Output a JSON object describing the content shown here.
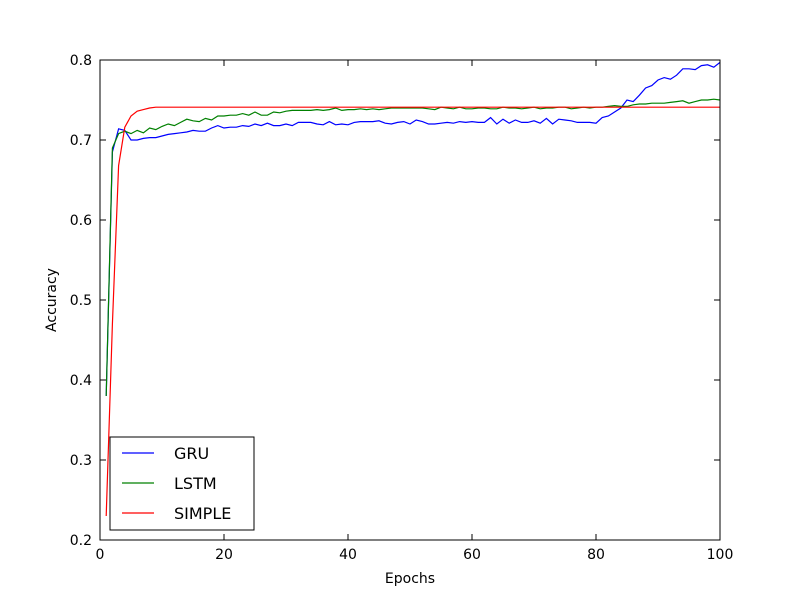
{
  "chart_data": {
    "type": "line",
    "title": "",
    "xlabel": "Epochs",
    "ylabel": "Accuracy",
    "xlim": [
      0,
      100
    ],
    "ylim": [
      0.2,
      0.8
    ],
    "xticks": [
      0,
      20,
      40,
      60,
      80,
      100
    ],
    "yticks": [
      0.2,
      0.3,
      0.4,
      0.5,
      0.6,
      0.7,
      0.8
    ],
    "grid": false,
    "legend_position": "lower-left",
    "x": [
      1,
      2,
      3,
      4,
      5,
      6,
      7,
      8,
      9,
      10,
      11,
      12,
      13,
      14,
      15,
      16,
      17,
      18,
      19,
      20,
      21,
      22,
      23,
      24,
      25,
      26,
      27,
      28,
      29,
      30,
      31,
      32,
      33,
      34,
      35,
      36,
      37,
      38,
      39,
      40,
      41,
      42,
      43,
      44,
      45,
      46,
      47,
      48,
      49,
      50,
      51,
      52,
      53,
      54,
      55,
      56,
      57,
      58,
      59,
      60,
      61,
      62,
      63,
      64,
      65,
      66,
      67,
      68,
      69,
      70,
      71,
      72,
      73,
      74,
      75,
      76,
      77,
      78,
      79,
      80,
      81,
      82,
      83,
      84,
      85,
      86,
      87,
      88,
      89,
      90,
      91,
      92,
      93,
      94,
      95,
      96,
      97,
      98,
      99,
      100
    ],
    "series": [
      {
        "name": "GRU",
        "color": "#0000ff",
        "values": [
          0.38,
          0.685,
          0.714,
          0.712,
          0.7,
          0.7,
          0.702,
          0.703,
          0.703,
          0.705,
          0.707,
          0.708,
          0.709,
          0.71,
          0.712,
          0.711,
          0.711,
          0.715,
          0.718,
          0.715,
          0.716,
          0.716,
          0.718,
          0.717,
          0.72,
          0.718,
          0.721,
          0.718,
          0.718,
          0.72,
          0.718,
          0.722,
          0.722,
          0.722,
          0.72,
          0.719,
          0.723,
          0.719,
          0.72,
          0.719,
          0.722,
          0.723,
          0.723,
          0.723,
          0.724,
          0.721,
          0.72,
          0.722,
          0.723,
          0.72,
          0.725,
          0.723,
          0.72,
          0.72,
          0.721,
          0.722,
          0.721,
          0.723,
          0.722,
          0.723,
          0.722,
          0.722,
          0.728,
          0.72,
          0.726,
          0.721,
          0.725,
          0.722,
          0.722,
          0.724,
          0.721,
          0.727,
          0.72,
          0.726,
          0.725,
          0.724,
          0.722,
          0.722,
          0.722,
          0.721,
          0.728,
          0.73,
          0.735,
          0.74,
          0.75,
          0.748,
          0.756,
          0.765,
          0.768,
          0.775,
          0.778,
          0.776,
          0.781,
          0.789,
          0.789,
          0.788,
          0.793,
          0.794,
          0.791,
          0.797
        ]
      },
      {
        "name": "LSTM",
        "color": "#008000",
        "values": [
          0.38,
          0.69,
          0.708,
          0.711,
          0.708,
          0.712,
          0.709,
          0.715,
          0.713,
          0.717,
          0.72,
          0.718,
          0.722,
          0.726,
          0.724,
          0.723,
          0.727,
          0.725,
          0.73,
          0.73,
          0.731,
          0.731,
          0.733,
          0.731,
          0.735,
          0.731,
          0.731,
          0.735,
          0.734,
          0.736,
          0.737,
          0.737,
          0.737,
          0.737,
          0.738,
          0.737,
          0.738,
          0.74,
          0.737,
          0.738,
          0.738,
          0.739,
          0.738,
          0.739,
          0.738,
          0.739,
          0.74,
          0.74,
          0.74,
          0.74,
          0.74,
          0.74,
          0.739,
          0.738,
          0.741,
          0.74,
          0.739,
          0.741,
          0.739,
          0.739,
          0.74,
          0.74,
          0.739,
          0.739,
          0.741,
          0.74,
          0.74,
          0.739,
          0.74,
          0.741,
          0.739,
          0.74,
          0.74,
          0.741,
          0.741,
          0.739,
          0.74,
          0.741,
          0.74,
          0.741,
          0.741,
          0.742,
          0.743,
          0.742,
          0.742,
          0.744,
          0.745,
          0.745,
          0.746,
          0.746,
          0.746,
          0.747,
          0.748,
          0.749,
          0.746,
          0.748,
          0.75,
          0.75,
          0.751,
          0.75
        ]
      },
      {
        "name": "SIMPLE",
        "color": "#ff0000",
        "values": [
          0.23,
          0.47,
          0.668,
          0.716,
          0.73,
          0.736,
          0.738,
          0.74,
          0.741,
          0.741,
          0.741,
          0.741,
          0.741,
          0.741,
          0.741,
          0.741,
          0.741,
          0.741,
          0.741,
          0.741,
          0.741,
          0.741,
          0.741,
          0.741,
          0.741,
          0.741,
          0.741,
          0.741,
          0.741,
          0.741,
          0.741,
          0.741,
          0.741,
          0.741,
          0.741,
          0.741,
          0.741,
          0.741,
          0.741,
          0.741,
          0.741,
          0.741,
          0.741,
          0.741,
          0.741,
          0.741,
          0.741,
          0.741,
          0.741,
          0.741,
          0.741,
          0.741,
          0.741,
          0.741,
          0.741,
          0.741,
          0.741,
          0.741,
          0.741,
          0.741,
          0.741,
          0.741,
          0.741,
          0.741,
          0.741,
          0.741,
          0.741,
          0.741,
          0.741,
          0.741,
          0.741,
          0.741,
          0.741,
          0.741,
          0.741,
          0.741,
          0.741,
          0.741,
          0.741,
          0.741,
          0.741,
          0.741,
          0.741,
          0.741,
          0.741,
          0.741,
          0.741,
          0.741,
          0.741,
          0.741,
          0.741,
          0.741,
          0.741,
          0.741,
          0.741,
          0.741,
          0.741,
          0.741,
          0.741,
          0.741
        ]
      }
    ]
  }
}
